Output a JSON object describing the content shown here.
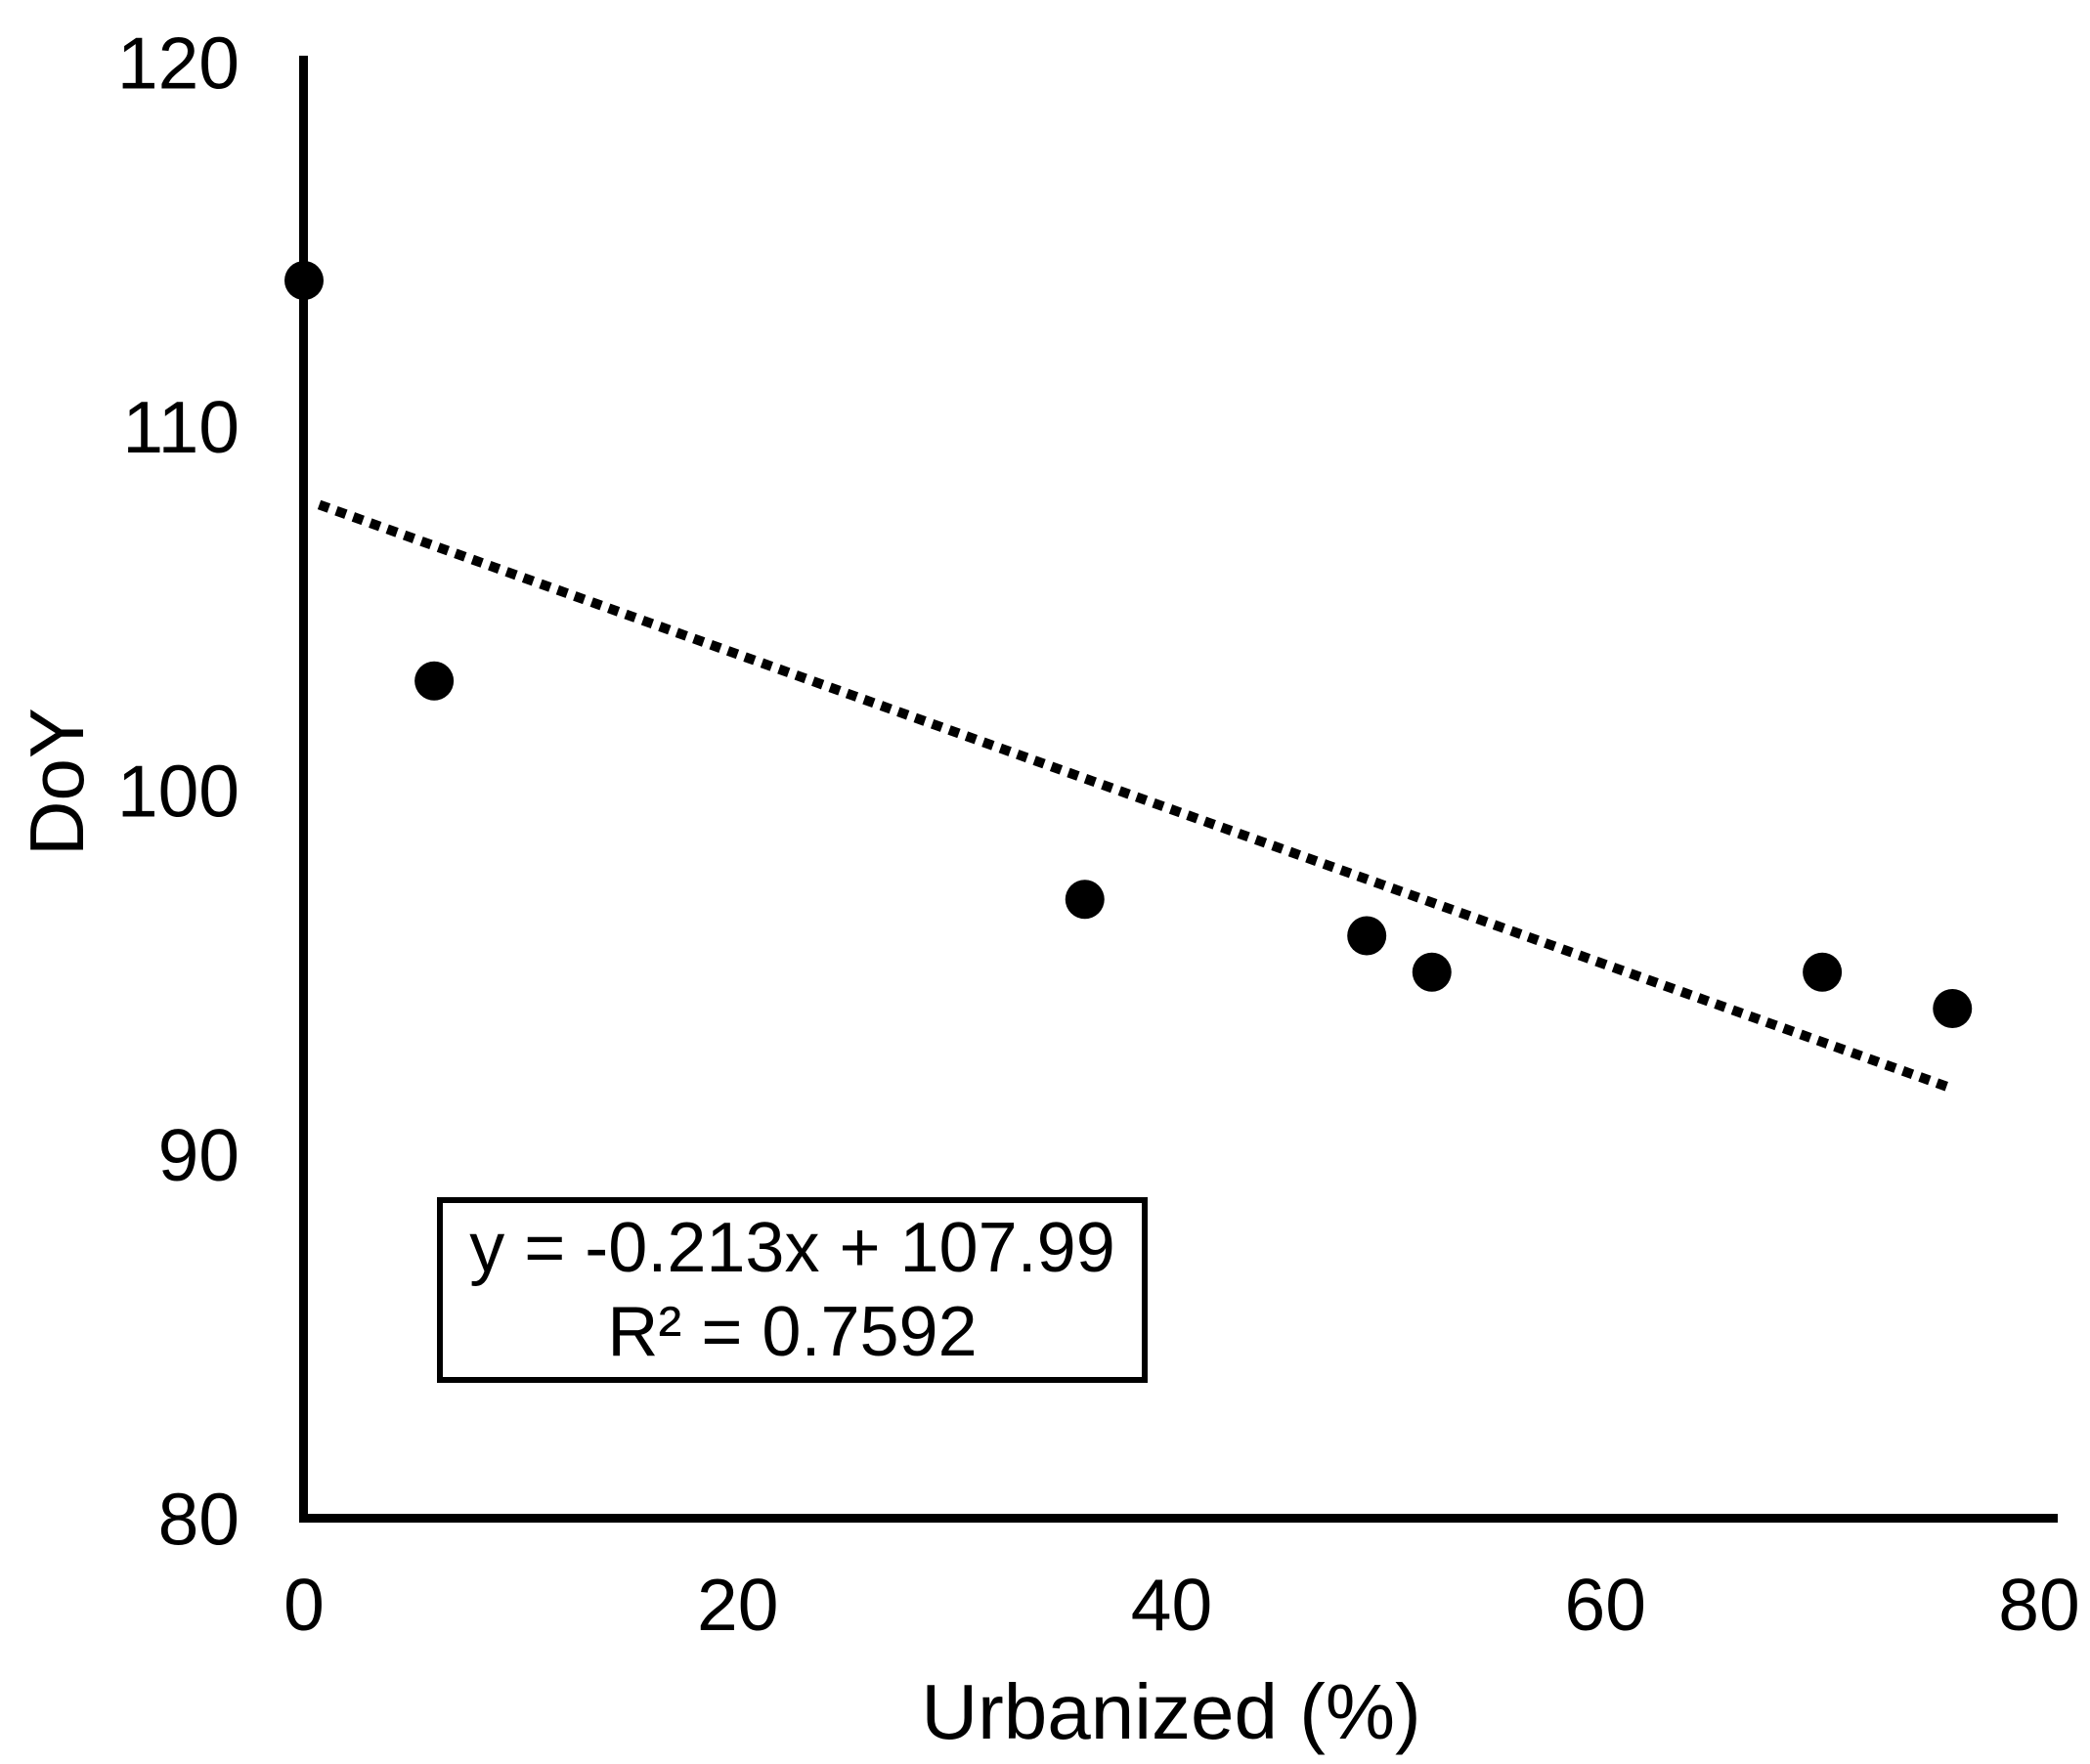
{
  "chart_data": {
    "type": "scatter",
    "title": "",
    "xlabel": "Urbanized (%)",
    "ylabel": "DoY",
    "xlim": [
      0,
      80
    ],
    "ylim": [
      80,
      120
    ],
    "x_ticks": [
      0,
      20,
      40,
      60,
      80
    ],
    "y_ticks": [
      120,
      110,
      100,
      90,
      80
    ],
    "grid": false,
    "legend": false,
    "points": [
      {
        "x": 0,
        "y": 114
      },
      {
        "x": 6,
        "y": 103
      },
      {
        "x": 36,
        "y": 97
      },
      {
        "x": 49,
        "y": 96
      },
      {
        "x": 52,
        "y": 95
      },
      {
        "x": 70,
        "y": 95
      },
      {
        "x": 76,
        "y": 94
      }
    ],
    "trendline": {
      "slope": -0.213,
      "intercept": 107.99,
      "x_start": 0.7,
      "x_end": 75.8,
      "style": "dotted"
    },
    "annotation": {
      "equation": "y = -0.213x + 107.99",
      "r_squared": "R² = 0.7592"
    },
    "colors": {
      "marker": "#000000",
      "trendline": "#000000",
      "axis": "#000000",
      "text": "#000000",
      "background": "#ffffff"
    }
  }
}
